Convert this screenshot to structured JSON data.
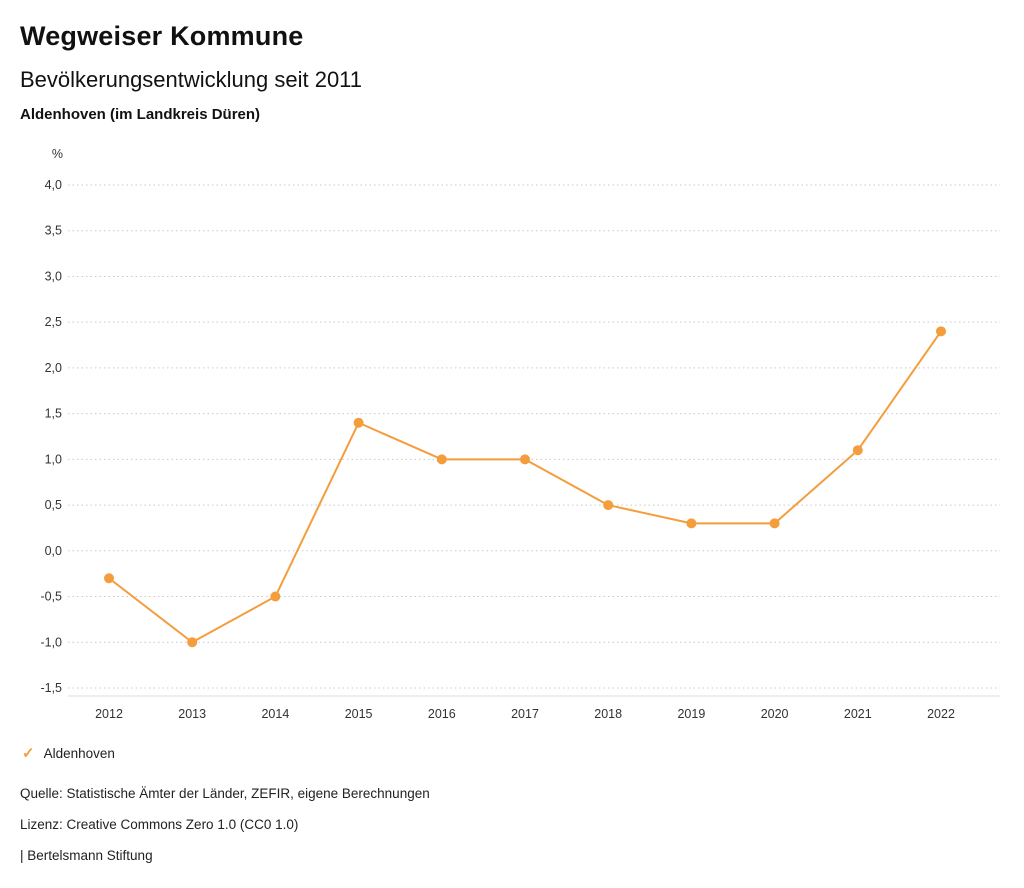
{
  "header": {
    "title": "Wegweiser Kommune",
    "subtitle": "Bevölkerungsentwicklung seit 2011",
    "region": "Aldenhoven (im Landkreis Düren)"
  },
  "chart_data": {
    "type": "line",
    "unit_label": "%",
    "x": [
      "2012",
      "2013",
      "2014",
      "2015",
      "2016",
      "2017",
      "2018",
      "2019",
      "2020",
      "2021",
      "2022"
    ],
    "series": [
      {
        "name": "Aldenhoven",
        "values": [
          -0.3,
          -1.0,
          -0.5,
          1.4,
          1.0,
          1.0,
          0.5,
          0.3,
          0.3,
          1.1,
          2.4
        ],
        "color": "#F49D3C"
      }
    ],
    "ylim": [
      -1.5,
      4.0
    ],
    "ytick_step": 0.5,
    "ytick_labels": [
      "4,0",
      "3,5",
      "3,0",
      "2,5",
      "2,0",
      "1,5",
      "1,0",
      "0,5",
      "0,0",
      "-0,5",
      "-1,0",
      "-1,5"
    ],
    "grid": "dotted-horizontal",
    "legend_position": "bottom-left",
    "title": "Bevölkerungsentwicklung seit 2011",
    "xlabel": "",
    "ylabel": "%"
  },
  "legend": {
    "marker": "check",
    "label": "Aldenhoven"
  },
  "footer": {
    "source": "Quelle: Statistische Ämter der Länder, ZEFIR, eigene Berechnungen",
    "license": "Lizenz: Creative Commons Zero 1.0 (CC0 1.0)",
    "attribution": "| Bertelsmann Stiftung"
  },
  "colors": {
    "accent": "#F49D3C",
    "grid": "#c9c9c9",
    "axis": "#dcdcdc",
    "text": "#333333"
  }
}
